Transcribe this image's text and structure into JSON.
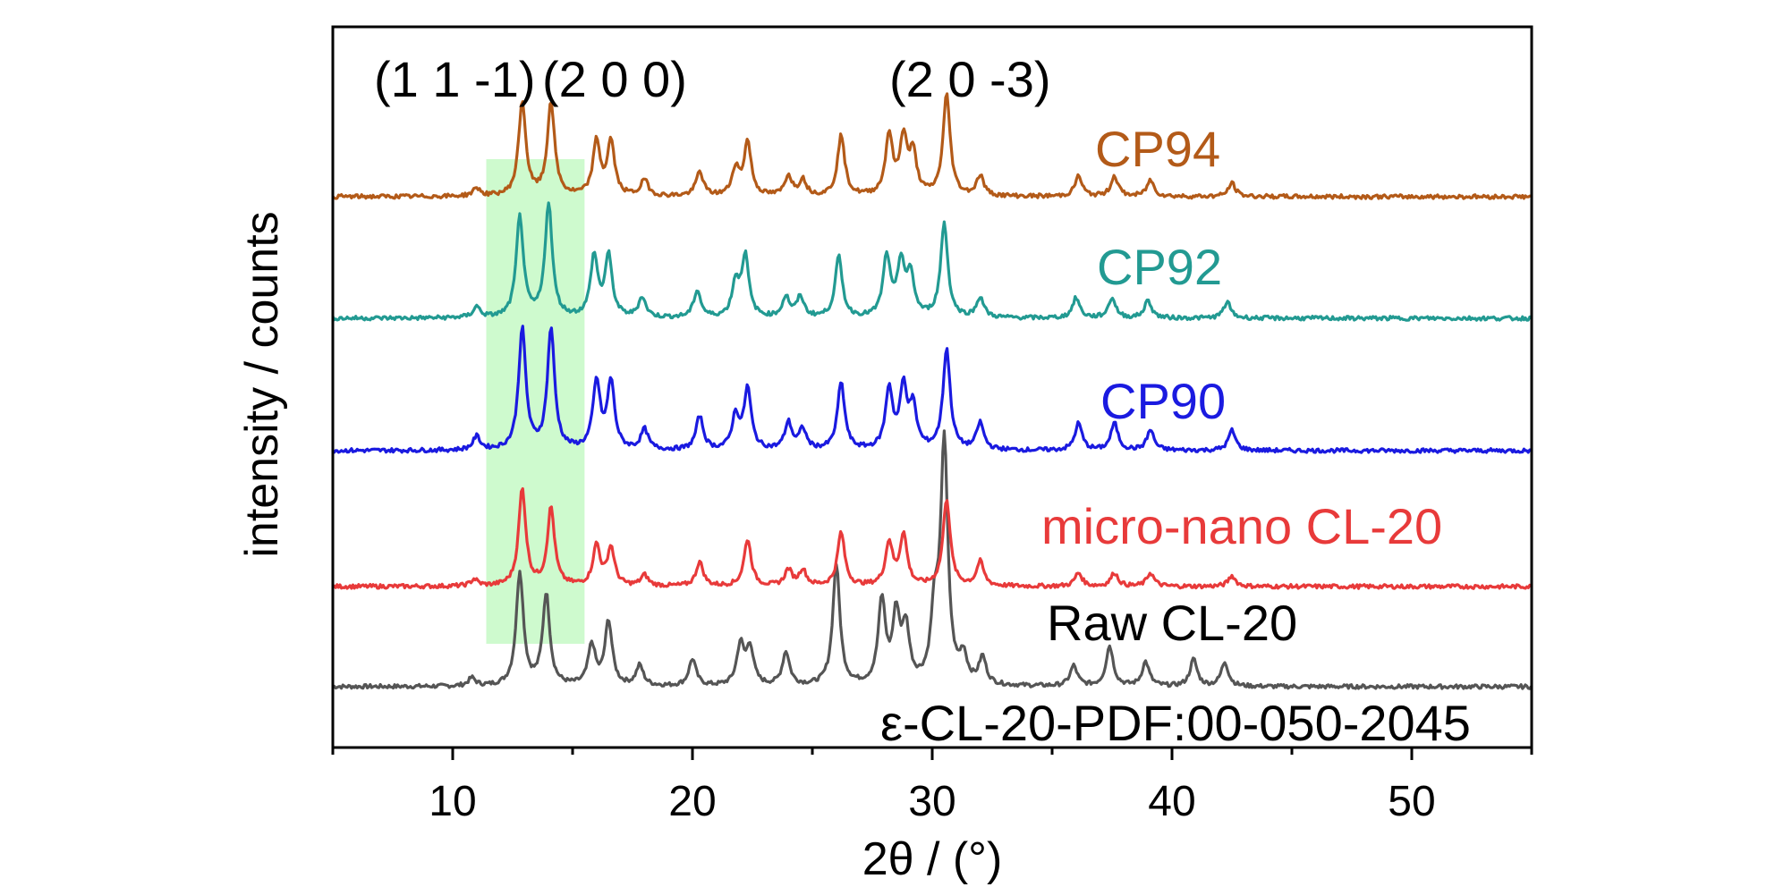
{
  "chart_data": {
    "type": "line",
    "title": "",
    "xlabel": "2θ / (°)",
    "ylabel": "intensity / counts",
    "xlim": [
      5,
      55
    ],
    "xticks": [
      10,
      20,
      30,
      40,
      50
    ],
    "grid": false,
    "peak_labels": [
      "(1 1 -1)",
      "(2 0 0)",
      "(2 0 -3)"
    ],
    "reference_label": "ε-CL-20-PDF:00-050-2045",
    "highlight_band": [
      11.4,
      15.5
    ],
    "series": [
      {
        "name": "Raw CL-20",
        "color": "#555555",
        "baseline": 0.0,
        "peaks": [
          [
            10.8,
            0.06
          ],
          [
            12.8,
            0.85
          ],
          [
            13.9,
            0.68
          ],
          [
            15.8,
            0.3
          ],
          [
            16.5,
            0.48
          ],
          [
            17.8,
            0.15
          ],
          [
            20.0,
            0.2
          ],
          [
            22.0,
            0.3
          ],
          [
            22.4,
            0.28
          ],
          [
            23.9,
            0.25
          ],
          [
            26.0,
            0.9
          ],
          [
            27.9,
            0.62
          ],
          [
            28.5,
            0.5
          ],
          [
            28.9,
            0.4
          ],
          [
            30.1,
            0.5
          ],
          [
            30.5,
            1.8
          ],
          [
            31.3,
            0.2
          ],
          [
            32.1,
            0.2
          ],
          [
            35.9,
            0.15
          ],
          [
            37.4,
            0.3
          ],
          [
            38.9,
            0.18
          ],
          [
            40.9,
            0.2
          ],
          [
            42.2,
            0.18
          ]
        ]
      },
      {
        "name": "micro-nano CL-20",
        "color": "#e83a3a",
        "baseline": 0.0,
        "peaks": [
          [
            10.9,
            0.05
          ],
          [
            12.9,
            0.72
          ],
          [
            14.1,
            0.58
          ],
          [
            16.0,
            0.3
          ],
          [
            16.6,
            0.28
          ],
          [
            18.0,
            0.08
          ],
          [
            20.3,
            0.18
          ],
          [
            22.3,
            0.35
          ],
          [
            24.0,
            0.12
          ],
          [
            24.6,
            0.12
          ],
          [
            26.2,
            0.4
          ],
          [
            28.2,
            0.32
          ],
          [
            28.8,
            0.38
          ],
          [
            30.6,
            0.65
          ],
          [
            32.0,
            0.18
          ],
          [
            36.1,
            0.1
          ],
          [
            37.6,
            0.1
          ],
          [
            39.1,
            0.1
          ],
          [
            42.5,
            0.08
          ]
        ]
      },
      {
        "name": "CP90",
        "color": "#1a1ae0",
        "baseline": 0.0,
        "peaks": [
          [
            11.0,
            0.1
          ],
          [
            12.9,
            0.9
          ],
          [
            14.1,
            0.9
          ],
          [
            16.0,
            0.5
          ],
          [
            16.6,
            0.5
          ],
          [
            18.0,
            0.15
          ],
          [
            20.3,
            0.25
          ],
          [
            21.8,
            0.25
          ],
          [
            22.3,
            0.45
          ],
          [
            24.0,
            0.2
          ],
          [
            24.6,
            0.15
          ],
          [
            26.2,
            0.5
          ],
          [
            28.2,
            0.45
          ],
          [
            28.8,
            0.45
          ],
          [
            29.2,
            0.3
          ],
          [
            30.6,
            0.75
          ],
          [
            32.0,
            0.2
          ],
          [
            36.1,
            0.2
          ],
          [
            37.6,
            0.2
          ],
          [
            39.1,
            0.15
          ],
          [
            42.5,
            0.15
          ]
        ]
      },
      {
        "name": "CP92",
        "color": "#229a92",
        "baseline": 0.0,
        "peaks": [
          [
            11.0,
            0.08
          ],
          [
            12.8,
            0.75
          ],
          [
            14.0,
            0.85
          ],
          [
            15.9,
            0.45
          ],
          [
            16.5,
            0.45
          ],
          [
            17.9,
            0.15
          ],
          [
            20.2,
            0.2
          ],
          [
            21.8,
            0.25
          ],
          [
            22.2,
            0.45
          ],
          [
            23.9,
            0.15
          ],
          [
            24.5,
            0.15
          ],
          [
            26.1,
            0.45
          ],
          [
            28.1,
            0.45
          ],
          [
            28.7,
            0.4
          ],
          [
            29.1,
            0.3
          ],
          [
            30.5,
            0.7
          ],
          [
            32.0,
            0.15
          ],
          [
            36.0,
            0.15
          ],
          [
            37.5,
            0.15
          ],
          [
            39.0,
            0.13
          ],
          [
            42.3,
            0.12
          ]
        ]
      },
      {
        "name": "CP94",
        "color": "#b35a18",
        "baseline": 0.0,
        "peaks": [
          [
            11.0,
            0.06
          ],
          [
            12.9,
            0.7
          ],
          [
            14.1,
            0.7
          ],
          [
            16.0,
            0.4
          ],
          [
            16.6,
            0.4
          ],
          [
            18.0,
            0.12
          ],
          [
            20.3,
            0.18
          ],
          [
            21.8,
            0.2
          ],
          [
            22.3,
            0.4
          ],
          [
            24.0,
            0.15
          ],
          [
            24.6,
            0.12
          ],
          [
            26.2,
            0.45
          ],
          [
            28.2,
            0.45
          ],
          [
            28.8,
            0.42
          ],
          [
            29.2,
            0.3
          ],
          [
            30.6,
            0.75
          ],
          [
            32.0,
            0.15
          ],
          [
            36.1,
            0.15
          ],
          [
            37.6,
            0.15
          ],
          [
            39.1,
            0.12
          ],
          [
            42.5,
            0.1
          ]
        ]
      }
    ]
  }
}
